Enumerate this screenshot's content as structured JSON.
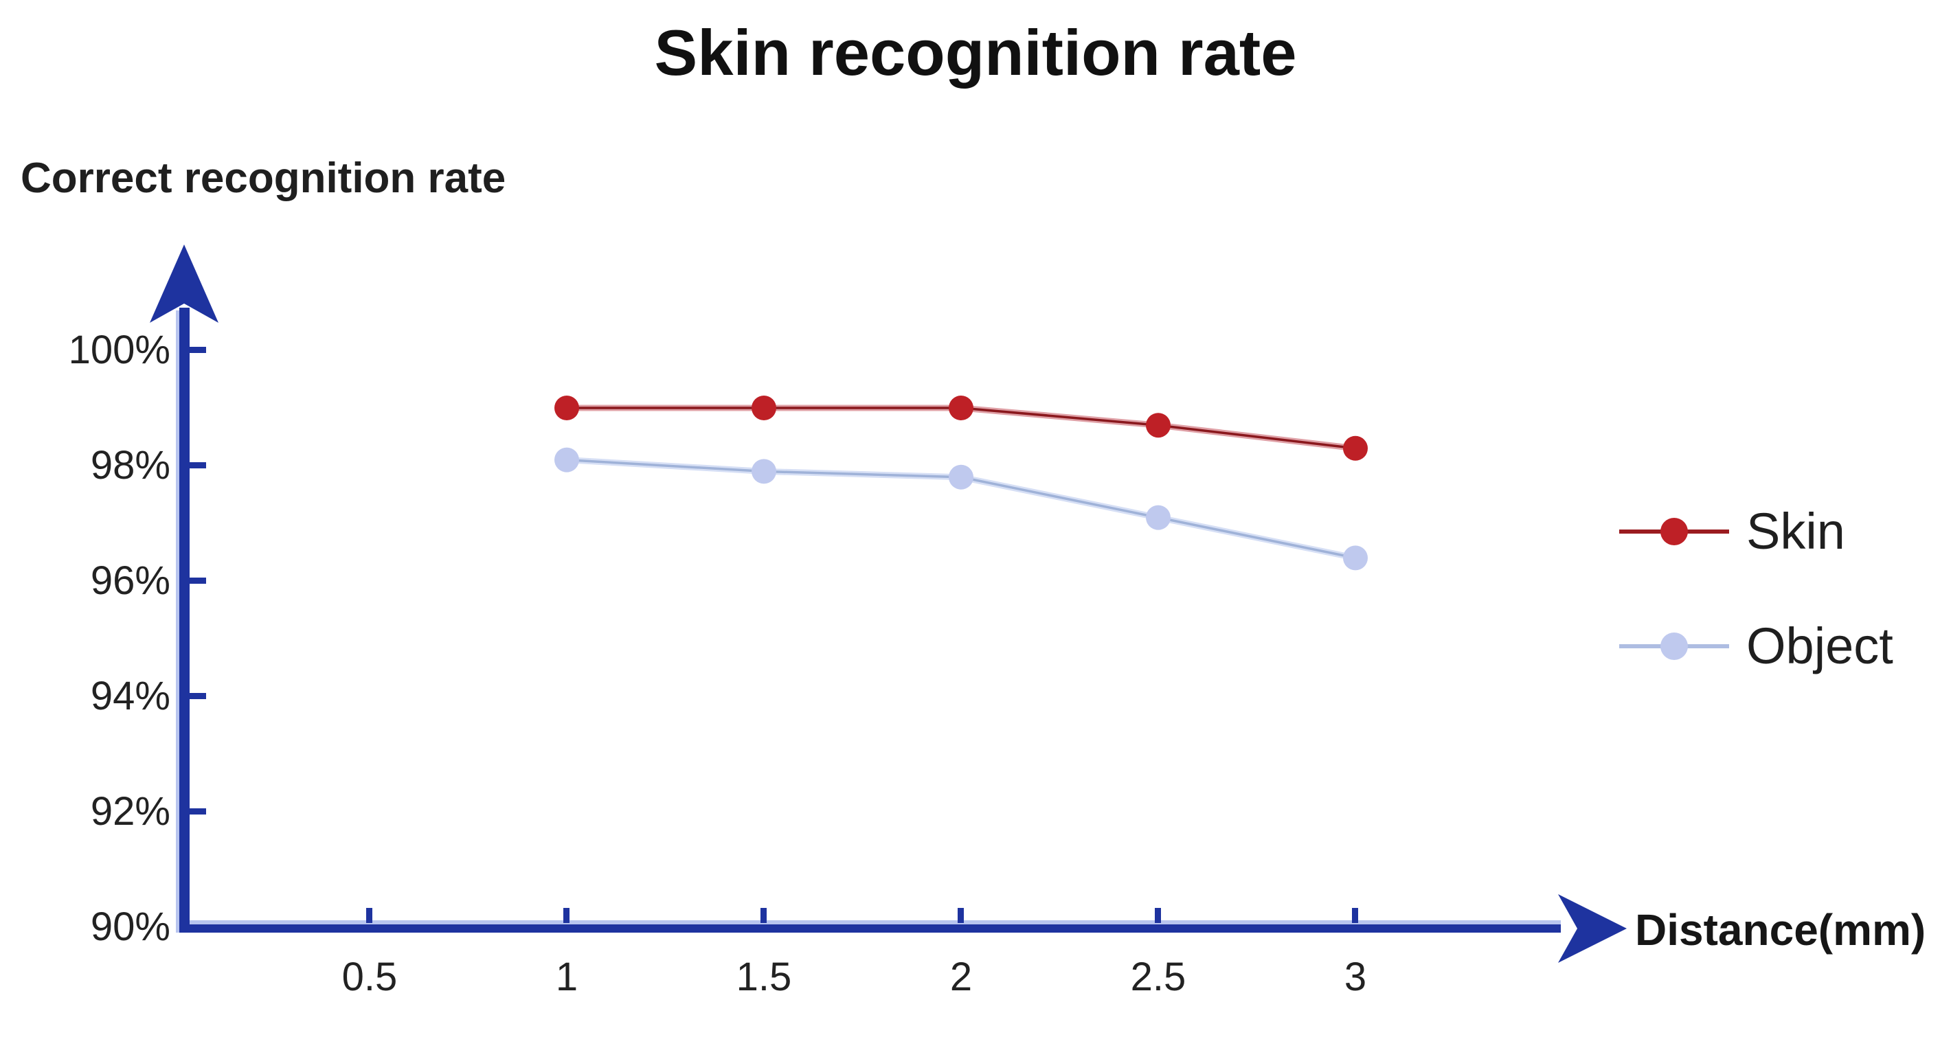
{
  "title": "Skin recognition rate",
  "axes": {
    "y_label": "Correct recognition rate",
    "x_label": "Distance(mm)"
  },
  "legend": {
    "position": "right",
    "items": [
      {
        "label": "Skin"
      },
      {
        "label": "Object"
      }
    ]
  },
  "colors": {
    "background": "#ffffff",
    "axis": "#1E339F",
    "axis_highlight": "#B8C5EF",
    "title_text": "#111111",
    "label_text": "#1f1f1f",
    "tick_text": "#222222",
    "skin_marker": "#BE2026",
    "skin_line": "#8A181D",
    "skin_line_glow": "#DFA0A6",
    "skin_legend_line": "#9B1C20",
    "object_marker": "#BFC9EE",
    "object_line": "#9FB2D8",
    "object_line_glow": "#D6DFF5",
    "object_legend_line": "#AEBDE2"
  },
  "chart_data": {
    "type": "line",
    "title": "Skin recognition rate",
    "xlabel": "Distance(mm)",
    "ylabel": "Correct recognition rate",
    "x": [
      1,
      1.5,
      2,
      2.5,
      3
    ],
    "series": [
      {
        "name": "Skin",
        "values": [
          99.0,
          99.0,
          99.0,
          98.7,
          98.3
        ]
      },
      {
        "name": "Object",
        "values": [
          98.1,
          97.9,
          97.8,
          97.1,
          96.4
        ]
      }
    ],
    "xticks": [
      0.5,
      1,
      1.5,
      2,
      2.5,
      3
    ],
    "xtick_labels": [
      "0.5",
      "1",
      "1.5",
      "2",
      "2.5",
      "3"
    ],
    "yticks": [
      100,
      98,
      96,
      94,
      92,
      90
    ],
    "ytick_labels": [
      "100%",
      "98%",
      "96%",
      "94%",
      "92%",
      "90%"
    ],
    "xlim": [
      0,
      3.5
    ],
    "ylim": [
      90,
      100.5
    ],
    "grid": false,
    "legend_position": "right"
  }
}
